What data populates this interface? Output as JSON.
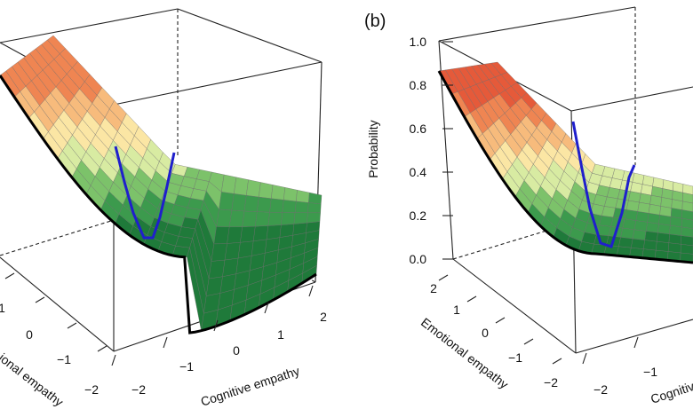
{
  "figure": {
    "panel_b_label": "(b)"
  },
  "chart_data": [
    {
      "type": "surface",
      "panel": "(a)",
      "xlabel": "Cognitive empathy",
      "ylabel": "ional empathy",
      "zlabel": "",
      "x_ticks": [
        "−2",
        "−1",
        "0",
        "1",
        "2"
      ],
      "y_ticks": [
        "−2",
        "−1",
        "0",
        "1"
      ],
      "z_ticks": [],
      "surface_colors": [
        "#1f7a3a",
        "#3c9a4d",
        "#7cc26a",
        "#d8eba2",
        "#fbe6a4",
        "#f7bb7c",
        "#ef8552"
      ],
      "curves": [
        {
          "color": "#000000",
          "description": "black curve along surface minimum"
        },
        {
          "color": "#1f1fcc",
          "description": "blue curve"
        }
      ]
    },
    {
      "type": "surface",
      "panel": "(b)",
      "xlabel": "Cognitive",
      "ylabel": "Emotional empathy",
      "zlabel": "Probability",
      "x_ticks": [
        "−2",
        "−1"
      ],
      "y_ticks": [
        "−2",
        "−1",
        "0",
        "1",
        "2"
      ],
      "z_ticks": [
        "0.0",
        "0.2",
        "0.4",
        "0.6",
        "0.8",
        "1.0"
      ],
      "zlim": [
        0,
        1
      ],
      "surface_colors": [
        "#1f7a3a",
        "#3c9a4d",
        "#7cc26a",
        "#d8eba2",
        "#fbe6a4",
        "#f7bb7c",
        "#ef8552",
        "#e55a3a"
      ],
      "curves": [
        {
          "color": "#000000",
          "description": "black curve along surface minimum"
        },
        {
          "color": "#1f1fcc",
          "description": "blue curve"
        }
      ]
    }
  ]
}
